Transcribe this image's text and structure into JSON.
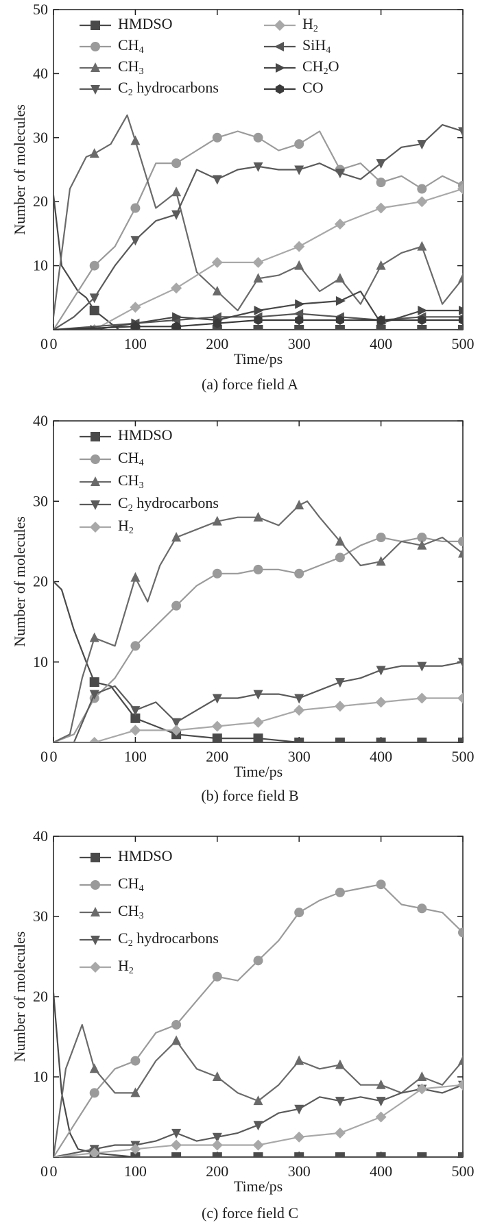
{
  "chart_data": [
    {
      "type": "line",
      "caption": "(a) force field A",
      "xlabel": "Time/ps",
      "ylabel": "Number of molecules",
      "xlim": [
        0,
        500
      ],
      "ylim": [
        0,
        50
      ],
      "xticks": [
        0,
        100,
        200,
        300,
        400,
        500
      ],
      "yticks": [
        0,
        10,
        20,
        30,
        40,
        50
      ],
      "legend_columns": 2,
      "legend_position": "top",
      "series": [
        {
          "name": "HMDSO",
          "name_base": "HMDSO",
          "name_sub": "",
          "marker": "square",
          "color": "#4a4a4a",
          "x": [
            0,
            10,
            20,
            30,
            40,
            50,
            60,
            70,
            80,
            100,
            150,
            200,
            250,
            300,
            350,
            400,
            450,
            500
          ],
          "y": [
            21,
            10,
            8,
            6,
            5,
            3,
            2,
            1,
            0,
            0,
            0,
            0,
            0,
            0,
            0,
            0,
            0,
            0
          ]
        },
        {
          "name": "CH4",
          "name_base": "CH",
          "name_sub": "4",
          "marker": "circle",
          "color": "#9a9a9a",
          "x": [
            0,
            25,
            50,
            75,
            100,
            125,
            150,
            175,
            200,
            225,
            250,
            275,
            300,
            325,
            350,
            375,
            400,
            425,
            450,
            475,
            500
          ],
          "y": [
            0,
            5,
            10,
            13,
            19,
            26,
            26,
            28,
            30,
            31,
            30,
            28,
            29,
            31,
            25,
            26,
            23,
            24,
            22,
            24,
            22.5
          ]
        },
        {
          "name": "CH3",
          "name_base": "CH",
          "name_sub": "3",
          "marker": "triangle-up",
          "color": "#6a6a6a",
          "x": [
            0,
            20,
            40,
            50,
            70,
            90,
            100,
            125,
            150,
            175,
            200,
            225,
            250,
            275,
            300,
            325,
            350,
            375,
            400,
            425,
            450,
            475,
            500
          ],
          "y": [
            2,
            22,
            27,
            27.5,
            29,
            33.5,
            29.5,
            19,
            21.5,
            9,
            6,
            3,
            8,
            8.5,
            10,
            6,
            8,
            4,
            10,
            12,
            13,
            4,
            8
          ]
        },
        {
          "name": "C2 hydrocarbons",
          "name_base": "C",
          "name_sub": "2",
          "name_rest": " hydrocarbons",
          "marker": "triangle-down",
          "color": "#5a5a5a",
          "x": [
            0,
            25,
            50,
            75,
            100,
            125,
            150,
            175,
            200,
            225,
            250,
            275,
            300,
            325,
            350,
            375,
            400,
            425,
            450,
            475,
            500
          ],
          "y": [
            0,
            2,
            5,
            10,
            14,
            17,
            18,
            25,
            23.5,
            25,
            25.5,
            25,
            25,
            26,
            24.5,
            23.5,
            26,
            28.5,
            29,
            32,
            31
          ]
        },
        {
          "name": "H2",
          "name_base": "H",
          "name_sub": "2",
          "marker": "diamond",
          "color": "#a8a8a8",
          "x": [
            0,
            50,
            100,
            150,
            200,
            250,
            300,
            350,
            400,
            450,
            500
          ],
          "y": [
            0,
            0,
            3.5,
            6.5,
            10.5,
            10.5,
            13,
            16.5,
            19,
            20,
            22
          ]
        },
        {
          "name": "SiH4",
          "name_base": "SiH",
          "name_sub": "4",
          "marker": "triangle-left",
          "color": "#555555",
          "x": [
            0,
            100,
            150,
            200,
            250,
            300,
            350,
            400,
            450,
            500
          ],
          "y": [
            0,
            1,
            1.5,
            2,
            2,
            2.5,
            2,
            1.5,
            2,
            2
          ]
        },
        {
          "name": "CH2O",
          "name_base": "CH",
          "name_sub": "2",
          "name_rest": "O",
          "marker": "triangle-right",
          "color": "#474747",
          "x": [
            0,
            50,
            100,
            150,
            200,
            250,
            300,
            350,
            375,
            400,
            450,
            500
          ],
          "y": [
            0,
            0,
            1,
            2,
            1.5,
            3,
            4,
            4.5,
            6,
            1,
            3,
            3
          ]
        },
        {
          "name": "CO",
          "name_base": "CO",
          "name_sub": "",
          "marker": "hexagon",
          "color": "#3a3a3a",
          "x": [
            0,
            100,
            150,
            200,
            250,
            300,
            350,
            400,
            450,
            500
          ],
          "y": [
            0,
            0.5,
            0.5,
            1,
            1.5,
            1.5,
            1.5,
            1.5,
            1.5,
            1.5
          ]
        }
      ]
    },
    {
      "type": "line",
      "caption": "(b) force field B",
      "xlabel": "Time/ps",
      "ylabel": "Number of molecules",
      "xlim": [
        0,
        500
      ],
      "ylim": [
        0,
        40
      ],
      "xticks": [
        0,
        100,
        200,
        300,
        400,
        500
      ],
      "yticks": [
        0,
        10,
        20,
        30,
        40
      ],
      "legend_columns": 1,
      "legend_position": "top-left",
      "series": [
        {
          "name": "HMDSO",
          "name_base": "HMDSO",
          "name_sub": "",
          "marker": "square",
          "color": "#4a4a4a",
          "x": [
            0,
            10,
            25,
            40,
            50,
            70,
            85,
            100,
            125,
            150,
            200,
            250,
            300,
            350,
            400,
            450,
            500
          ],
          "y": [
            20,
            19,
            14,
            10,
            7.5,
            7,
            5,
            3,
            2,
            1,
            0.5,
            0.5,
            0,
            0,
            0,
            0,
            0
          ]
        },
        {
          "name": "CH4",
          "name_base": "CH",
          "name_sub": "4",
          "marker": "circle",
          "color": "#9a9a9a",
          "x": [
            0,
            25,
            50,
            75,
            100,
            125,
            150,
            175,
            200,
            225,
            250,
            275,
            300,
            325,
            350,
            375,
            400,
            425,
            450,
            475,
            500
          ],
          "y": [
            0,
            1,
            5.5,
            8,
            12,
            14.5,
            17,
            19.5,
            21,
            21,
            21.5,
            21.5,
            21,
            22,
            23,
            24.5,
            25.5,
            25,
            25.5,
            25,
            25
          ]
        },
        {
          "name": "CH3",
          "name_base": "CH",
          "name_sub": "3",
          "marker": "triangle-up",
          "color": "#6a6a6a",
          "x": [
            0,
            20,
            35,
            50,
            75,
            100,
            115,
            130,
            150,
            175,
            200,
            225,
            250,
            275,
            300,
            310,
            325,
            350,
            375,
            400,
            425,
            450,
            475,
            500
          ],
          "y": [
            0,
            1,
            8,
            13,
            12,
            20.5,
            17.5,
            22,
            25.5,
            26.5,
            27.5,
            28,
            28,
            27,
            29.5,
            30,
            28,
            25,
            22,
            22.5,
            25,
            24.5,
            25.5,
            23.5
          ]
        },
        {
          "name": "C2 hydrocarbons",
          "name_base": "C",
          "name_sub": "2",
          "name_rest": " hydrocarbons",
          "marker": "triangle-down",
          "color": "#5a5a5a",
          "x": [
            0,
            25,
            50,
            75,
            100,
            125,
            150,
            175,
            200,
            225,
            250,
            275,
            300,
            325,
            350,
            375,
            400,
            425,
            450,
            475,
            500
          ],
          "y": [
            0,
            0,
            6,
            7,
            4,
            5,
            2.5,
            4,
            5.5,
            5.5,
            6,
            6,
            5.5,
            6.5,
            7.5,
            8,
            9,
            9.5,
            9.5,
            9.5,
            10
          ]
        },
        {
          "name": "H2",
          "name_base": "H",
          "name_sub": "2",
          "marker": "diamond",
          "color": "#a8a8a8",
          "x": [
            0,
            50,
            100,
            150,
            200,
            250,
            300,
            350,
            400,
            450,
            500
          ],
          "y": [
            0,
            0,
            1.5,
            1.5,
            2,
            2.5,
            4,
            4.5,
            5,
            5.5,
            5.5
          ]
        }
      ]
    },
    {
      "type": "line",
      "caption": "(c) force field C",
      "xlabel": "Time/ps",
      "ylabel": "Number of molecules",
      "xlim": [
        0,
        500
      ],
      "ylim": [
        0,
        40
      ],
      "xticks": [
        0,
        100,
        200,
        300,
        400,
        500
      ],
      "yticks": [
        0,
        10,
        20,
        30,
        40
      ],
      "legend_columns": 1,
      "legend_position": "top-left",
      "series": [
        {
          "name": "HMDSO",
          "name_base": "HMDSO",
          "name_sub": "",
          "marker": "square",
          "color": "#4a4a4a",
          "x": [
            0,
            10,
            20,
            30,
            50,
            100,
            150,
            200,
            250,
            300,
            350,
            400,
            450,
            500
          ],
          "y": [
            20.5,
            8,
            3,
            1,
            0.5,
            0,
            0,
            0,
            0,
            0,
            0,
            0,
            0,
            0
          ]
        },
        {
          "name": "CH4",
          "name_base": "CH",
          "name_sub": "4",
          "marker": "circle",
          "color": "#9a9a9a",
          "x": [
            0,
            25,
            50,
            75,
            100,
            125,
            150,
            175,
            200,
            225,
            250,
            275,
            300,
            325,
            350,
            375,
            400,
            425,
            450,
            475,
            500
          ],
          "y": [
            0,
            4,
            8,
            11,
            12,
            15.5,
            16.5,
            19.5,
            22.5,
            22,
            24.5,
            27,
            30.5,
            32,
            33,
            33.5,
            34,
            31.5,
            31,
            30.5,
            28
          ]
        },
        {
          "name": "CH3",
          "name_base": "CH",
          "name_sub": "3",
          "marker": "triangle-up",
          "color": "#6a6a6a",
          "x": [
            0,
            15,
            35,
            50,
            75,
            100,
            125,
            150,
            175,
            200,
            225,
            250,
            275,
            300,
            325,
            350,
            375,
            400,
            425,
            450,
            475,
            500
          ],
          "y": [
            0,
            11,
            16.5,
            11,
            8,
            8,
            12,
            14.5,
            11,
            10,
            8,
            7,
            9,
            12,
            11,
            11.5,
            9,
            9,
            8,
            10,
            9,
            12
          ]
        },
        {
          "name": "C2 hydrocarbons",
          "name_base": "C",
          "name_sub": "2",
          "name_rest": " hydrocarbons",
          "marker": "triangle-down",
          "color": "#5a5a5a",
          "x": [
            0,
            25,
            50,
            75,
            100,
            125,
            150,
            175,
            200,
            225,
            250,
            275,
            300,
            325,
            350,
            375,
            400,
            425,
            450,
            475,
            500
          ],
          "y": [
            0,
            0.5,
            1,
            1.5,
            1.5,
            2,
            3,
            2,
            2.5,
            3,
            4,
            5.5,
            6,
            7.5,
            7,
            7.5,
            7,
            8,
            8.5,
            8,
            9
          ]
        },
        {
          "name": "H2",
          "name_base": "H",
          "name_sub": "2",
          "marker": "diamond",
          "color": "#a8a8a8",
          "x": [
            0,
            50,
            100,
            150,
            200,
            250,
            300,
            350,
            400,
            450,
            500
          ],
          "y": [
            0,
            0.5,
            1,
            1.5,
            1.5,
            1.5,
            2.5,
            3,
            5,
            8.5,
            9
          ]
        }
      ]
    }
  ]
}
